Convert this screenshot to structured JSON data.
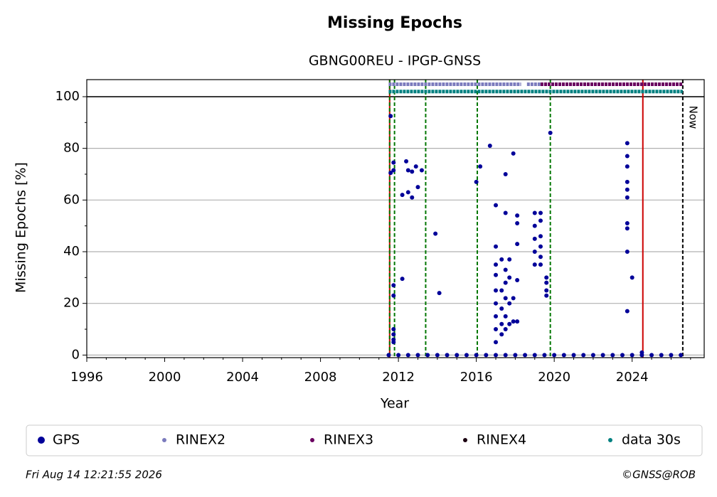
{
  "chart_data": {
    "type": "scatter",
    "title": "Missing Epochs",
    "subtitle": "GBNG00REU - IPGP-GNSS",
    "x_label": "Year",
    "y_label": "Missing Epochs [%]",
    "xlim": [
      1996,
      2027.7
    ],
    "ylim": [
      -1,
      106.6
    ],
    "xticks": [
      1996,
      2000,
      2004,
      2008,
      2012,
      2016,
      2020,
      2024
    ],
    "xminorticks": [
      1997,
      1998,
      1999,
      2001,
      2002,
      2003,
      2005,
      2006,
      2007,
      2009,
      2010,
      2011,
      2013,
      2014,
      2015,
      2017,
      2018,
      2019,
      2021,
      2022,
      2023,
      2025,
      2026,
      2027
    ],
    "yticks": [
      0,
      20,
      40,
      60,
      80,
      100
    ],
    "yminorticks": [
      10,
      30,
      50,
      70,
      90
    ],
    "grid": true,
    "hline": 100,
    "vlines": [
      {
        "x": 2011.55,
        "color": "#cc0000",
        "style": "solid"
      },
      {
        "x": 2011.55,
        "color": "#007700",
        "style": "dashed"
      },
      {
        "x": 2011.8,
        "color": "#007700",
        "style": "dashed"
      },
      {
        "x": 2013.4,
        "color": "#007700",
        "style": "dashed"
      },
      {
        "x": 2016.05,
        "color": "#007700",
        "style": "dashed"
      },
      {
        "x": 2019.8,
        "color": "#007700",
        "style": "dashed"
      },
      {
        "x": 2024.55,
        "color": "#cc0000",
        "style": "solid"
      },
      {
        "x": 2026.6,
        "color": "#000000",
        "style": "dashed"
      }
    ],
    "now_label": "Now",
    "series": [
      {
        "name": "GPS",
        "color": "#000099",
        "x": [
          2011.6,
          2011.6,
          2011.75,
          2011.75,
          2011.75,
          2011.75,
          2011.75,
          2011.75,
          2011.75,
          2011.75,
          2012.2,
          2012.2,
          2012.4,
          2012.5,
          2012.5,
          2012.7,
          2012.7,
          2012.9,
          2013.0,
          2013.2,
          2013.9,
          2014.1,
          2016.0,
          2016.2,
          2016.7,
          2017.0,
          2017.0,
          2017.0,
          2017.0,
          2017.0,
          2017.0,
          2017.0,
          2017.0,
          2017.0,
          2017.3,
          2017.3,
          2017.3,
          2017.3,
          2017.3,
          2017.5,
          2017.5,
          2017.5,
          2017.5,
          2017.5,
          2017.5,
          2017.5,
          2017.7,
          2017.7,
          2017.7,
          2017.7,
          2017.9,
          2017.9,
          2017.9,
          2018.1,
          2018.1,
          2018.1,
          2018.1,
          2018.1,
          2019.0,
          2019.0,
          2019.0,
          2019.0,
          2019.0,
          2019.3,
          2019.3,
          2019.3,
          2019.3,
          2019.3,
          2019.3,
          2019.6,
          2019.6,
          2019.6,
          2019.6,
          2019.8,
          2023.75,
          2023.75,
          2023.75,
          2023.75,
          2023.75,
          2023.75,
          2023.75,
          2023.75,
          2023.75,
          2023.75,
          2024.0,
          2024.5,
          2011.5,
          2012.0,
          2012.5,
          2013.0,
          2013.5,
          2014.0,
          2014.5,
          2015.0,
          2015.5,
          2016.0,
          2016.5,
          2017.0,
          2017.5,
          2018.0,
          2018.5,
          2019.0,
          2019.5,
          2020.0,
          2020.5,
          2021.0,
          2021.5,
          2022.0,
          2022.5,
          2023.0,
          2023.5,
          2024.0,
          2024.5,
          2025.0,
          2025.5,
          2026.0,
          2026.5
        ],
        "values": [
          92.5,
          70.5,
          74.5,
          71.5,
          27,
          23,
          10,
          8,
          6,
          5,
          62,
          29.5,
          75,
          63,
          71.5,
          71,
          61,
          73,
          65,
          71.5,
          47,
          24,
          67,
          73,
          81,
          58,
          42,
          35,
          31,
          25,
          20,
          15,
          10,
          5,
          37,
          25,
          18,
          12,
          8,
          70,
          55,
          33,
          28,
          22,
          15,
          10,
          37,
          30,
          20,
          12,
          78,
          22,
          13,
          54,
          51,
          43,
          29,
          13,
          55,
          50,
          45,
          40,
          35,
          55,
          52,
          46,
          42,
          38,
          35,
          30,
          28,
          25,
          23,
          86,
          82,
          77,
          73,
          67,
          64,
          61,
          51,
          49,
          40,
          17,
          30,
          1,
          0,
          0,
          0,
          0,
          0,
          0,
          0,
          0,
          0,
          0,
          0,
          0,
          0,
          0,
          0,
          0,
          0,
          0,
          0,
          0,
          0,
          0,
          0,
          0,
          0,
          0,
          0,
          0,
          0,
          0,
          0
        ]
      },
      {
        "name": "RINEX2",
        "color": "#7b7bbd",
        "y": 104.8,
        "segments": [
          [
            2011.5,
            2018.3
          ],
          [
            2018.6,
            2019.3
          ]
        ]
      },
      {
        "name": "RINEX3",
        "color": "#6a0060",
        "y": 104.8,
        "segments": [
          [
            2019.3,
            2026.6
          ]
        ]
      },
      {
        "name": "RINEX4",
        "color": "#1a0010",
        "y": 104.8,
        "segments": []
      },
      {
        "name": "data 30s",
        "color": "#008080",
        "y": 102,
        "segments": [
          [
            2011.5,
            2026.6
          ]
        ]
      }
    ],
    "timestamp": "Fri Aug 14 12:21:55 2026",
    "copyright": "©GNSS@ROB"
  }
}
